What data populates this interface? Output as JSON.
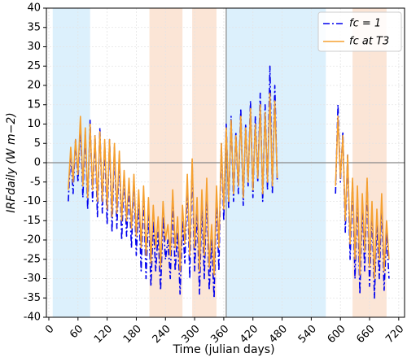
{
  "chart_data": {
    "type": "line",
    "xlabel": "Time (julian days)",
    "ylabel": "IRFdaily (W m−2)",
    "x": [
      40,
      45,
      50,
      55,
      60,
      65,
      70,
      75,
      80,
      85,
      90,
      95,
      100,
      105,
      110,
      115,
      120,
      125,
      130,
      135,
      140,
      145,
      150,
      155,
      160,
      165,
      170,
      175,
      180,
      185,
      190,
      195,
      200,
      205,
      210,
      215,
      220,
      225,
      230,
      235,
      240,
      245,
      250,
      255,
      260,
      265,
      270,
      275,
      280,
      285,
      290,
      295,
      300,
      305,
      310,
      315,
      320,
      325,
      330,
      335,
      340,
      345,
      350,
      355,
      360,
      365,
      370,
      375,
      380,
      385,
      390,
      395,
      400,
      405,
      410,
      415,
      420,
      425,
      430,
      435,
      440,
      445,
      450,
      455,
      460,
      465,
      470,
      530,
      590,
      595,
      600,
      605,
      610,
      615,
      620,
      625,
      630,
      635,
      640,
      645,
      650,
      655,
      660,
      665,
      670,
      675,
      680,
      685,
      690,
      695,
      700
    ],
    "series": [
      {
        "name": "fc = 1",
        "color": "#0000ee",
        "dash": "8,3,2,3",
        "values": [
          -10,
          3,
          -8,
          6,
          -5,
          10,
          -9,
          8,
          -12,
          11,
          -10,
          7,
          -14,
          9,
          -13,
          5,
          -16,
          6,
          -18,
          4,
          -17,
          2,
          -20,
          -3,
          -19,
          -6,
          -22,
          -4,
          -24,
          -10,
          -28,
          -8,
          -30,
          -12,
          -32,
          -15,
          -28,
          -18,
          -33,
          -14,
          -25,
          -20,
          -30,
          -10,
          -28,
          -18,
          -34,
          -15,
          -26,
          -5,
          -30,
          0,
          -28,
          -12,
          -34,
          -10,
          -30,
          -6,
          -33,
          -20,
          -35,
          -8,
          -28,
          5,
          -15,
          10,
          -12,
          12,
          -10,
          8,
          -8,
          14,
          -11,
          10,
          -6,
          16,
          -9,
          12,
          -5,
          18,
          -10,
          15,
          -7,
          25,
          -8,
          20,
          -5,
          null,
          -8,
          15,
          -5,
          8,
          -18,
          2,
          -25,
          -5,
          -30,
          -8,
          -34,
          -10,
          -28,
          -5,
          -32,
          -12,
          -35,
          -15,
          -30,
          -10,
          -33,
          -18,
          -30
        ]
      },
      {
        "name": "fc at T3",
        "color": "#f5a030",
        "dash": "none",
        "values": [
          -7,
          4,
          -5,
          6,
          -3,
          12,
          -6,
          9,
          -9,
          10,
          -7,
          7,
          -10,
          8,
          -10,
          6,
          -12,
          6,
          -14,
          5,
          -13,
          3,
          -15,
          -2,
          -15,
          -4,
          -17,
          -3,
          -19,
          -7,
          -22,
          -6,
          -24,
          -9,
          -26,
          -11,
          -22,
          -14,
          -27,
          -10,
          -20,
          -16,
          -24,
          -7,
          -22,
          -14,
          -28,
          -11,
          -21,
          -3,
          -24,
          1,
          -22,
          -9,
          -28,
          -7,
          -24,
          -4,
          -27,
          -16,
          -29,
          -6,
          -22,
          5,
          -12,
          9,
          -10,
          11,
          -8,
          7,
          -6,
          12,
          -9,
          9,
          -5,
          14,
          -7,
          10,
          -4,
          15,
          -8,
          13,
          -5,
          18,
          -6,
          16,
          -4,
          null,
          -6,
          12,
          -4,
          7,
          -15,
          2,
          -21,
          -4,
          -25,
          -6,
          -29,
          -8,
          -23,
          -4,
          -27,
          -10,
          -30,
          -12,
          -25,
          -8,
          -28,
          -15,
          -25
        ]
      }
    ],
    "xlim": [
      -5,
      732
    ],
    "ylim": [
      -40,
      40
    ],
    "xticks": [
      0,
      60,
      120,
      180,
      240,
      300,
      360,
      420,
      480,
      540,
      600,
      660,
      720
    ],
    "yticks": [
      -40,
      -35,
      -30,
      -25,
      -20,
      -15,
      -10,
      -5,
      0,
      5,
      10,
      15,
      20,
      25,
      30,
      35,
      40
    ],
    "grid": true,
    "legend": "upper right",
    "shaded_regions": [
      {
        "start": 8,
        "end": 85,
        "color": "#dcf0fc"
      },
      {
        "start": 207,
        "end": 275,
        "color": "#fbe5d6"
      },
      {
        "start": 295,
        "end": 345,
        "color": "#fbe5d6"
      },
      {
        "start": 365,
        "end": 570,
        "color": "#dcf0fc"
      },
      {
        "start": 625,
        "end": 695,
        "color": "#fbe5d6"
      }
    ],
    "vline": 365,
    "hline": 0
  }
}
